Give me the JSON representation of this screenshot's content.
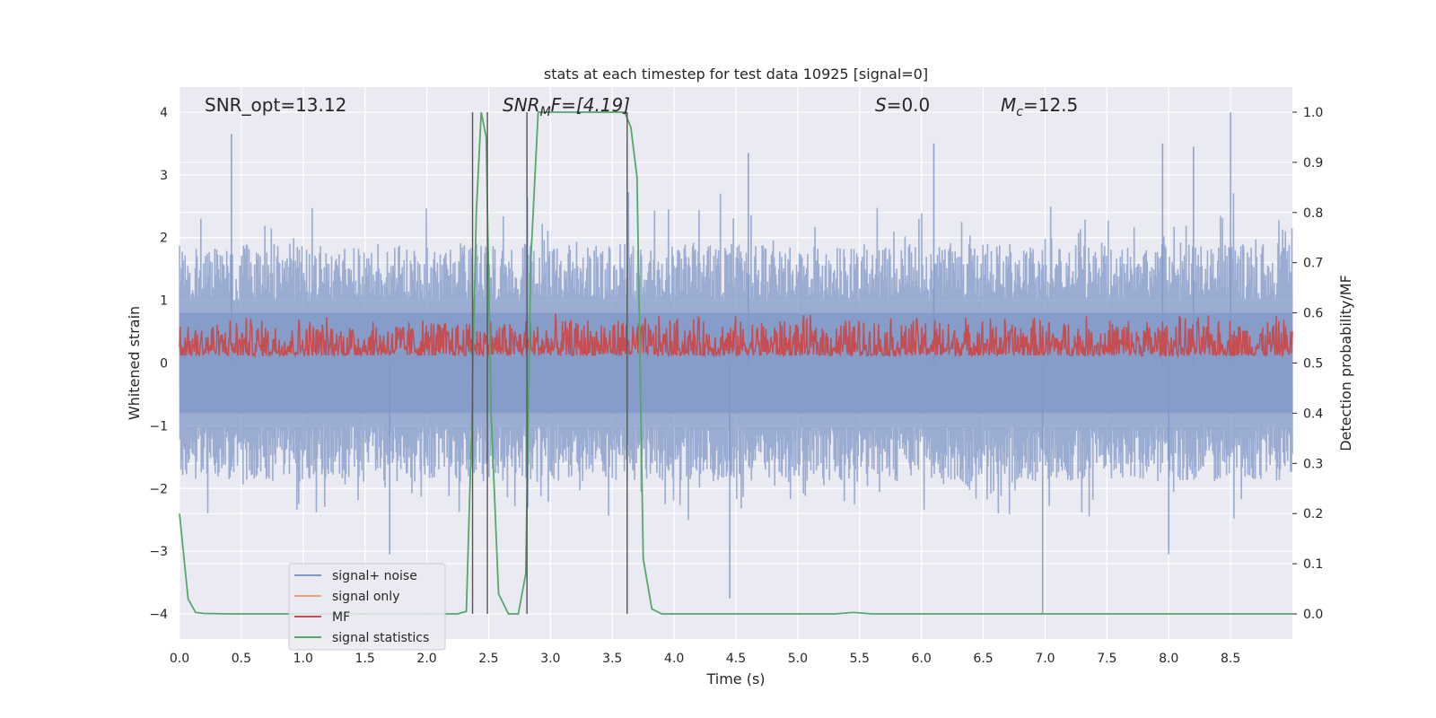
{
  "chart_data": {
    "type": "line",
    "title": "stats at each timestep for test data 10925 [signal=0]",
    "xlabel": "Time (s)",
    "ylabel_left": "Whitened strain",
    "ylabel_right": "Detection probability/MF",
    "xlim": [
      0.0,
      9.0
    ],
    "ylim_left": [
      -4.4,
      4.4
    ],
    "ylim_right": [
      -0.05,
      1.05
    ],
    "xticks": [
      "0.0",
      "0.5",
      "1.0",
      "1.5",
      "2.0",
      "2.5",
      "3.0",
      "3.5",
      "4.0",
      "4.5",
      "5.0",
      "5.5",
      "6.0",
      "6.5",
      "7.0",
      "7.5",
      "8.0",
      "8.5"
    ],
    "yticks_left": [
      "4",
      "3",
      "2",
      "1",
      "0",
      "−1",
      "−2",
      "−3",
      "−4"
    ],
    "yticks_right": [
      "1.0",
      "0.9",
      "0.8",
      "0.7",
      "0.6",
      "0.5",
      "0.4",
      "0.3",
      "0.2",
      "0.1",
      "0.0"
    ],
    "grid": true,
    "annotations": {
      "snr_opt": "SNR_opt=13.12",
      "snr_mf": {
        "base": "SNR",
        "sub": "M",
        "rest": "F=[4.19]"
      },
      "s": {
        "var": "S",
        "rest": "=0.0"
      },
      "mc": {
        "var": "M",
        "sub": "c",
        "rest": "=12.5"
      }
    },
    "legend": {
      "placement": "lower-left",
      "entries": [
        "signal+ noise",
        "signal only",
        "MF",
        "signal statistics"
      ]
    },
    "colors": {
      "noise": "#7f97c6",
      "signal_only": "#e8a07e",
      "mf": "#c44e52",
      "stats": "#55a868",
      "vlines": "#555555",
      "axes_bg": "#eaeaf2",
      "grid": "#ffffff"
    },
    "series": [
      {
        "name": "signal statistics",
        "x": [
          0.0,
          0.07,
          0.13,
          0.2,
          0.4,
          0.8,
          1.2,
          1.6,
          2.0,
          2.25,
          2.32,
          2.36,
          2.4,
          2.44,
          2.48,
          2.52,
          2.58,
          2.66,
          2.74,
          2.8,
          2.84,
          2.9,
          3.0,
          3.3,
          3.6,
          3.65,
          3.7,
          3.75,
          3.82,
          3.9,
          4.2,
          5.0,
          5.3,
          5.45,
          5.6,
          6.0,
          7.0,
          8.0,
          9.0
        ],
        "y": [
          0.2,
          0.03,
          0.003,
          0.001,
          0.0,
          0.0,
          0.0,
          0.0,
          0.0,
          0.0,
          0.005,
          0.35,
          0.8,
          1.0,
          0.95,
          0.4,
          0.04,
          0.0,
          0.0,
          0.08,
          0.7,
          1.0,
          1.0,
          1.0,
          1.0,
          0.97,
          0.87,
          0.11,
          0.01,
          0.0,
          0.0,
          0.0,
          0.0,
          0.003,
          0.0,
          0.0,
          0.0,
          0.0,
          0.0
        ]
      }
    ],
    "noise_series": {
      "name": "signal+ noise",
      "typical_envelope": [
        -2.2,
        2.2
      ],
      "peaks": [
        {
          "x": 0.42,
          "y": 3.65
        },
        {
          "x": 4.6,
          "y": 3.35
        },
        {
          "x": 6.1,
          "y": 3.5
        },
        {
          "x": 8.2,
          "y": 3.45
        },
        {
          "x": 8.5,
          "y": 4.0
        },
        {
          "x": 7.95,
          "y": 3.5
        },
        {
          "x": 4.45,
          "y": -3.75
        },
        {
          "x": 6.98,
          "y": -4.0
        },
        {
          "x": 1.7,
          "y": -3.05
        },
        {
          "x": 8.0,
          "y": -3.05
        }
      ]
    },
    "mf_series": {
      "name": "MF",
      "typical_range_right_axis": [
        0.5,
        0.6
      ]
    },
    "vertical_lines_x": [
      2.37,
      2.49,
      2.81,
      3.62
    ]
  }
}
